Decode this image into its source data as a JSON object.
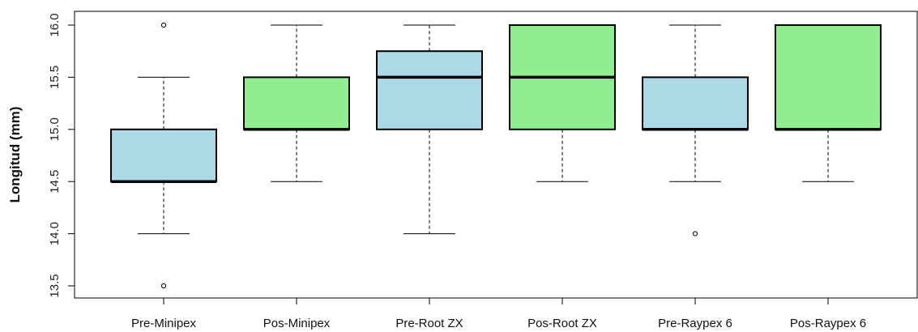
{
  "chart_data": {
    "type": "boxplot",
    "title": "",
    "xlabel": "",
    "ylabel": "Longitud (mm)",
    "ylim": [
      13.4,
      16.1
    ],
    "yticks": [
      "13.5",
      "14.0",
      "14.5",
      "15.0",
      "15.5",
      "16.0"
    ],
    "grid": false,
    "categories": [
      "Pre-Minipex",
      "Pos-Minipex",
      "Pre-Root ZX",
      "Pos-Root ZX",
      "Pre-Raypex 6",
      "Pos-Raypex 6"
    ],
    "boxes": [
      {
        "category": "Pre-Minipex",
        "whisker_low": 14.0,
        "q1": 14.5,
        "median": 14.5,
        "q3": 15.0,
        "whisker_high": 15.5,
        "outliers": [
          16.0,
          13.5
        ],
        "color": "#add8e6"
      },
      {
        "category": "Pos-Minipex",
        "whisker_low": 14.5,
        "q1": 15.0,
        "median": 15.0,
        "q3": 15.5,
        "whisker_high": 16.0,
        "outliers": [],
        "color": "#90ee90"
      },
      {
        "category": "Pre-Root ZX",
        "whisker_low": 14.0,
        "q1": 15.0,
        "median": 15.5,
        "q3": 15.75,
        "whisker_high": 16.0,
        "outliers": [],
        "color": "#add8e6"
      },
      {
        "category": "Pos-Root ZX",
        "whisker_low": 14.5,
        "q1": 15.0,
        "median": 15.5,
        "q3": 16.0,
        "whisker_high": 16.0,
        "outliers": [],
        "color": "#90ee90"
      },
      {
        "category": "Pre-Raypex 6",
        "whisker_low": 14.5,
        "q1": 15.0,
        "median": 15.0,
        "q3": 15.5,
        "whisker_high": 16.0,
        "outliers": [
          14.0
        ],
        "color": "#add8e6"
      },
      {
        "category": "Pos-Raypex 6",
        "whisker_low": 14.5,
        "q1": 15.0,
        "median": 15.0,
        "q3": 16.0,
        "whisker_high": 16.0,
        "outliers": [],
        "color": "#90ee90"
      }
    ]
  }
}
